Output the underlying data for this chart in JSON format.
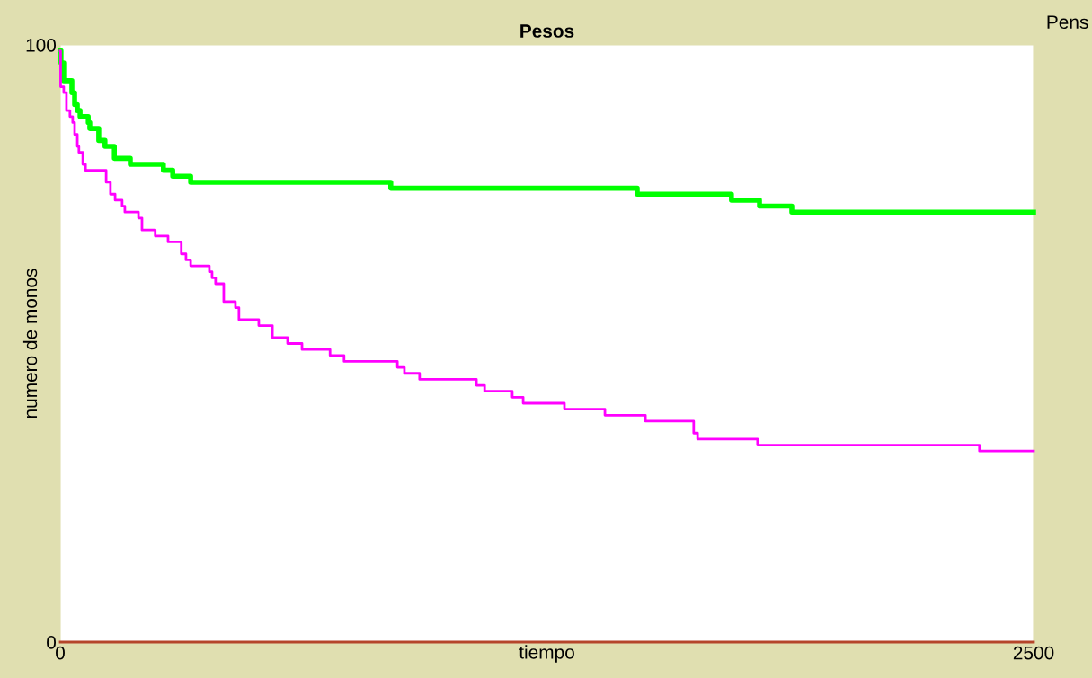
{
  "chart_data": {
    "type": "step",
    "title": "Pesos",
    "xlabel": "tiempo",
    "ylabel": "numero de monos",
    "annotations": [
      "Pens"
    ],
    "xlim": [
      0,
      2500
    ],
    "xticks": [
      0,
      2500
    ],
    "ylim": [
      0,
      100
    ],
    "yticks": [
      0,
      100
    ],
    "grid": false,
    "legend": false,
    "series": [
      {
        "color": "#00ff00",
        "x": [
          0,
          2,
          9,
          30,
          37,
          44,
          51,
          72,
          76,
          99,
          115,
          139,
          180,
          265,
          289,
          335,
          849,
          1482,
          1724,
          1796,
          1879,
          2500
        ],
        "values": [
          99,
          97,
          94,
          92,
          90,
          89,
          88,
          87,
          86,
          84,
          83,
          81,
          80,
          79,
          78,
          77,
          76,
          75,
          74,
          73,
          72,
          72
        ]
      },
      {
        "color": "#ff00ff",
        "x": [
          0,
          1,
          9,
          16,
          25,
          32,
          37,
          44,
          48,
          58,
          65,
          118,
          129,
          141,
          159,
          166,
          201,
          210,
          244,
          277,
          311,
          323,
          335,
          383,
          390,
          399,
          420,
          450,
          459,
          503,
          510,
          545,
          584,
          621,
          693,
          729,
          866,
          884,
          923,
          1069,
          1090,
          1161,
          1189,
          1295,
          1399,
          1503,
          1627,
          1637,
          1750,
          1791,
          2361,
          2500
        ],
        "values": [
          99,
          93,
          92,
          89,
          88,
          87,
          85,
          83,
          82,
          80,
          79,
          77,
          75,
          74,
          73,
          72,
          71,
          69,
          68,
          67,
          65,
          64,
          63,
          62,
          61,
          60,
          57,
          56,
          54,
          54,
          53,
          51,
          50,
          49,
          48,
          47,
          46,
          45,
          44,
          43,
          42,
          41,
          40,
          39,
          38,
          37,
          35,
          34,
          34,
          33,
          32,
          32
        ]
      },
      {
        "color": "#b5452a",
        "x": [
          0,
          2500
        ],
        "values": [
          0,
          0
        ]
      }
    ]
  }
}
